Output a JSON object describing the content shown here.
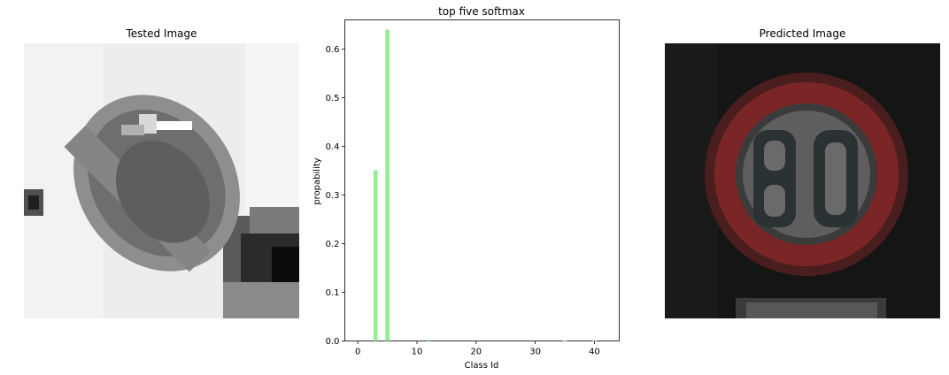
{
  "left_panel": {
    "title": "Tested Image"
  },
  "right_panel": {
    "title": "Predicted Image"
  },
  "chart_data": {
    "type": "bar",
    "title": "top five softmax",
    "xlabel": "Class Id",
    "ylabel": "propability",
    "xlim": [
      -2.2,
      44.2
    ],
    "ylim": [
      0,
      0.66
    ],
    "xticks": [
      0,
      10,
      20,
      30,
      40
    ],
    "yticks": [
      0.0,
      0.1,
      0.2,
      0.3,
      0.4,
      0.5,
      0.6
    ],
    "bar_color": "#90ee90",
    "x": [
      3,
      5,
      12,
      35,
      40
    ],
    "values": [
      0.351,
      0.64,
      0.002,
      0.001,
      0.001
    ]
  }
}
